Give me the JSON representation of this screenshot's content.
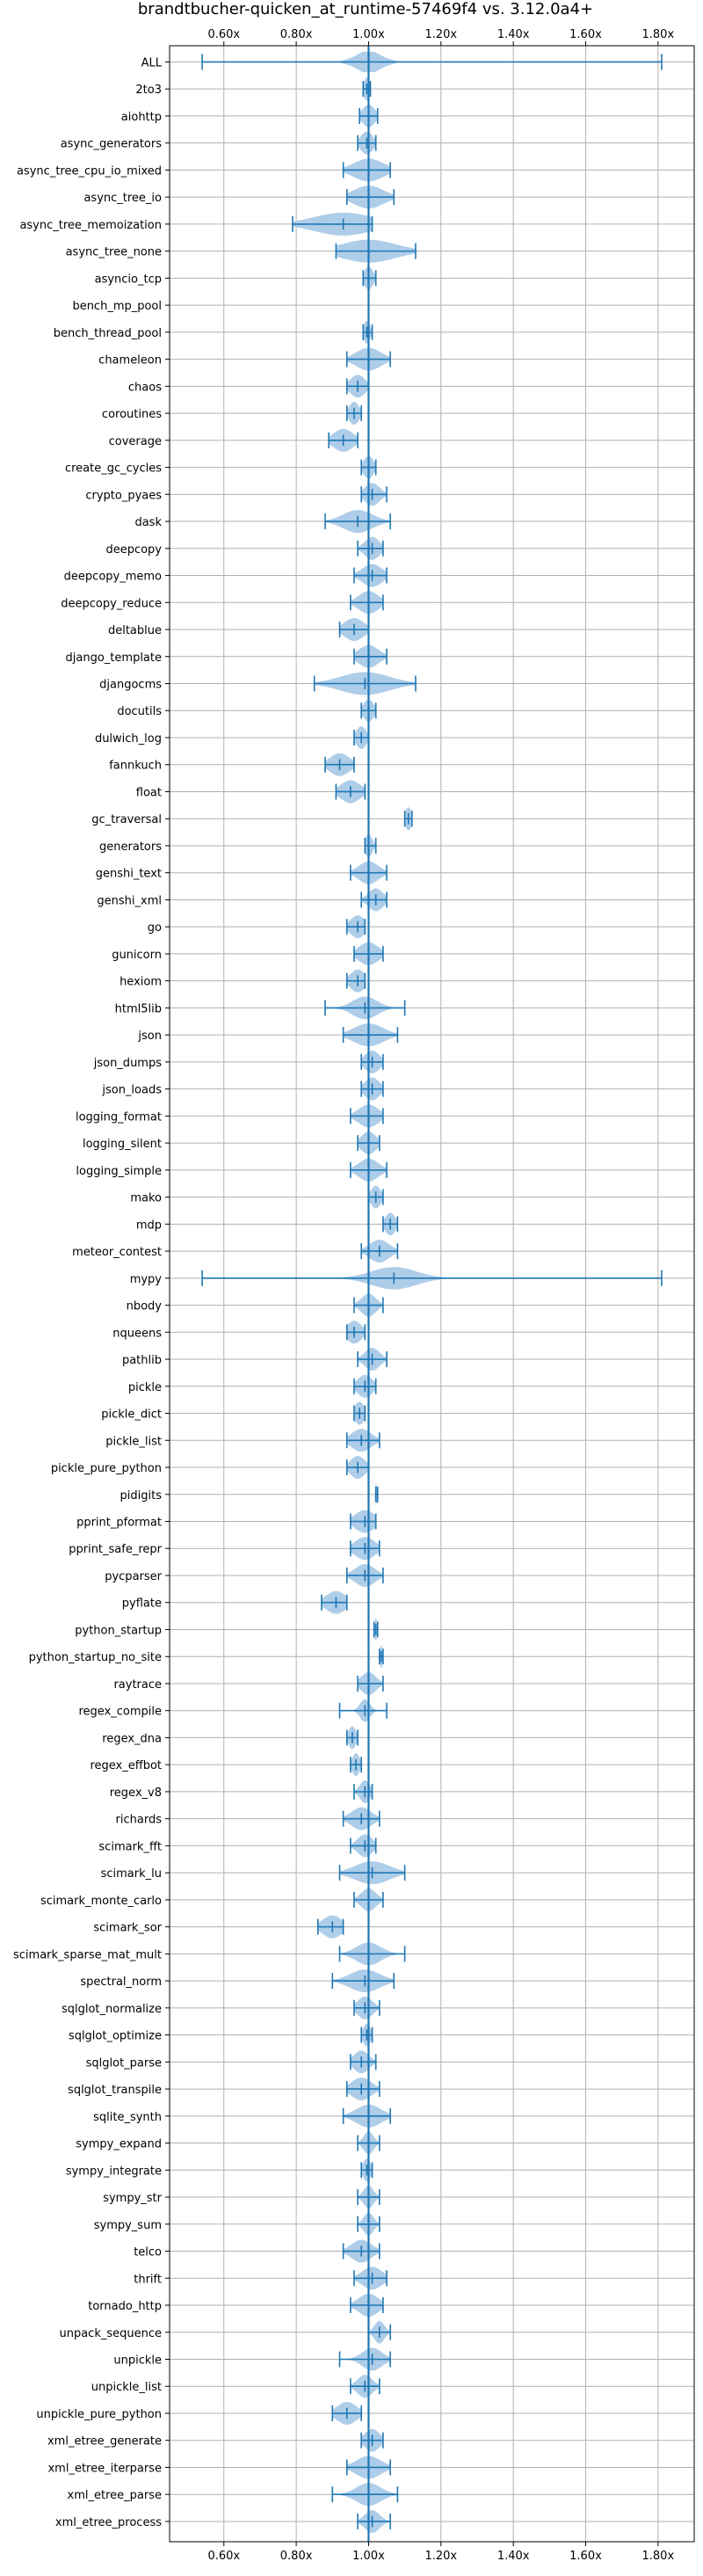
{
  "chart_data": {
    "type": "violin",
    "title": "brandtbucher-quicken_at_runtime-57469f4 vs. 3.12.0a4+",
    "orientation": "horizontal",
    "xlim": [
      0.45,
      1.9
    ],
    "xticks": [
      {
        "value": 0.6,
        "label": "0.60x"
      },
      {
        "value": 0.8,
        "label": "0.80x"
      },
      {
        "value": 1.0,
        "label": "1.00x"
      },
      {
        "value": 1.2,
        "label": "1.20x"
      },
      {
        "value": 1.4,
        "label": "1.40x"
      },
      {
        "value": 1.6,
        "label": "1.60x"
      },
      {
        "value": 1.8,
        "label": "1.80x"
      }
    ],
    "grid": true,
    "reference_line": 1.0,
    "colors": {
      "violin": "#aecde8",
      "line": "#1f77b4",
      "grid": "#b0b0b0"
    },
    "benchmarks": [
      {
        "name": "ALL",
        "min": 0.54,
        "max": 1.81,
        "median": 1.0,
        "spread": 0.05
      },
      {
        "name": "2to3",
        "min": 0.985,
        "max": 1.005,
        "median": 0.995,
        "spread": 0.012
      },
      {
        "name": "aiohttp",
        "min": 0.975,
        "max": 1.025,
        "median": 1.0,
        "spread": 0.025
      },
      {
        "name": "async_generators",
        "min": 0.97,
        "max": 1.02,
        "median": 0.995,
        "spread": 0.025
      },
      {
        "name": "async_tree_cpu_io_mixed",
        "min": 0.93,
        "max": 1.06,
        "median": 1.0,
        "spread": 0.06
      },
      {
        "name": "async_tree_io",
        "min": 0.94,
        "max": 1.07,
        "median": 1.0,
        "spread": 0.06
      },
      {
        "name": "async_tree_memoization",
        "min": 0.79,
        "max": 1.01,
        "median": 0.93,
        "spread": 0.12
      },
      {
        "name": "async_tree_none",
        "min": 0.91,
        "max": 1.13,
        "median": 1.0,
        "spread": 0.11
      },
      {
        "name": "asyncio_tcp",
        "min": 0.985,
        "max": 1.02,
        "median": 1.0,
        "spread": 0.018
      },
      {
        "name": "bench_mp_pool",
        "min": 1.0,
        "max": 1.0,
        "median": 1.0,
        "spread": 0.0
      },
      {
        "name": "bench_thread_pool",
        "min": 0.985,
        "max": 1.01,
        "median": 0.995,
        "spread": 0.013
      },
      {
        "name": "chameleon",
        "min": 0.94,
        "max": 1.06,
        "median": 1.0,
        "spread": 0.05
      },
      {
        "name": "chaos",
        "min": 0.94,
        "max": 1.0,
        "median": 0.97,
        "spread": 0.03
      },
      {
        "name": "coroutines",
        "min": 0.94,
        "max": 0.98,
        "median": 0.96,
        "spread": 0.02
      },
      {
        "name": "coverage",
        "min": 0.89,
        "max": 0.97,
        "median": 0.93,
        "spread": 0.04
      },
      {
        "name": "create_gc_cycles",
        "min": 0.98,
        "max": 1.02,
        "median": 1.0,
        "spread": 0.02
      },
      {
        "name": "crypto_pyaes",
        "min": 0.98,
        "max": 1.05,
        "median": 1.01,
        "spread": 0.03
      },
      {
        "name": "dask",
        "min": 0.88,
        "max": 1.06,
        "median": 0.97,
        "spread": 0.06
      },
      {
        "name": "deepcopy",
        "min": 0.97,
        "max": 1.04,
        "median": 1.01,
        "spread": 0.03
      },
      {
        "name": "deepcopy_memo",
        "min": 0.96,
        "max": 1.05,
        "median": 1.01,
        "spread": 0.04
      },
      {
        "name": "deepcopy_reduce",
        "min": 0.95,
        "max": 1.04,
        "median": 1.0,
        "spread": 0.04
      },
      {
        "name": "deltablue",
        "min": 0.92,
        "max": 1.0,
        "median": 0.96,
        "spread": 0.04
      },
      {
        "name": "django_template",
        "min": 0.96,
        "max": 1.05,
        "median": 1.0,
        "spread": 0.04
      },
      {
        "name": "djangocms",
        "min": 0.85,
        "max": 1.13,
        "median": 0.99,
        "spread": 0.1
      },
      {
        "name": "docutils",
        "min": 0.98,
        "max": 1.02,
        "median": 1.0,
        "spread": 0.02
      },
      {
        "name": "dulwich_log",
        "min": 0.96,
        "max": 1.0,
        "median": 0.98,
        "spread": 0.02
      },
      {
        "name": "fannkuch",
        "min": 0.88,
        "max": 0.96,
        "median": 0.92,
        "spread": 0.04
      },
      {
        "name": "float",
        "min": 0.91,
        "max": 0.99,
        "median": 0.95,
        "spread": 0.04
      },
      {
        "name": "gc_traversal",
        "min": 1.1,
        "max": 1.12,
        "median": 1.11,
        "spread": 0.015
      },
      {
        "name": "generators",
        "min": 0.99,
        "max": 1.02,
        "median": 1.0,
        "spread": 0.015
      },
      {
        "name": "genshi_text",
        "min": 0.95,
        "max": 1.05,
        "median": 1.0,
        "spread": 0.04
      },
      {
        "name": "genshi_xml",
        "min": 0.98,
        "max": 1.05,
        "median": 1.02,
        "spread": 0.03
      },
      {
        "name": "go",
        "min": 0.94,
        "max": 0.99,
        "median": 0.97,
        "spread": 0.03
      },
      {
        "name": "gunicorn",
        "min": 0.96,
        "max": 1.04,
        "median": 1.0,
        "spread": 0.04
      },
      {
        "name": "hexiom",
        "min": 0.94,
        "max": 0.99,
        "median": 0.97,
        "spread": 0.03
      },
      {
        "name": "html5lib",
        "min": 0.88,
        "max": 1.1,
        "median": 0.99,
        "spread": 0.05
      },
      {
        "name": "json",
        "min": 0.93,
        "max": 1.08,
        "median": 1.0,
        "spread": 0.06
      },
      {
        "name": "json_dumps",
        "min": 0.98,
        "max": 1.04,
        "median": 1.01,
        "spread": 0.03
      },
      {
        "name": "json_loads",
        "min": 0.98,
        "max": 1.04,
        "median": 1.01,
        "spread": 0.03
      },
      {
        "name": "logging_format",
        "min": 0.95,
        "max": 1.04,
        "median": 1.0,
        "spread": 0.04
      },
      {
        "name": "logging_silent",
        "min": 0.97,
        "max": 1.03,
        "median": 1.0,
        "spread": 0.03
      },
      {
        "name": "logging_simple",
        "min": 0.95,
        "max": 1.05,
        "median": 1.0,
        "spread": 0.04
      },
      {
        "name": "mako",
        "min": 1.0,
        "max": 1.04,
        "median": 1.02,
        "spread": 0.02
      },
      {
        "name": "mdp",
        "min": 1.04,
        "max": 1.08,
        "median": 1.06,
        "spread": 0.02
      },
      {
        "name": "meteor_contest",
        "min": 0.98,
        "max": 1.08,
        "median": 1.03,
        "spread": 0.04
      },
      {
        "name": "mypy",
        "min": 0.54,
        "max": 1.81,
        "median": 1.07,
        "spread": 0.09
      },
      {
        "name": "nbody",
        "min": 0.96,
        "max": 1.04,
        "median": 1.0,
        "spread": 0.03
      },
      {
        "name": "nqueens",
        "min": 0.94,
        "max": 0.99,
        "median": 0.96,
        "spread": 0.03
      },
      {
        "name": "pathlib",
        "min": 0.97,
        "max": 1.05,
        "median": 1.01,
        "spread": 0.03
      },
      {
        "name": "pickle",
        "min": 0.96,
        "max": 1.02,
        "median": 0.99,
        "spread": 0.03
      },
      {
        "name": "pickle_dict",
        "min": 0.96,
        "max": 0.99,
        "median": 0.975,
        "spread": 0.02
      },
      {
        "name": "pickle_list",
        "min": 0.94,
        "max": 1.03,
        "median": 0.98,
        "spread": 0.04
      },
      {
        "name": "pickle_pure_python",
        "min": 0.94,
        "max": 1.0,
        "median": 0.97,
        "spread": 0.03
      },
      {
        "name": "pidigits",
        "min": 1.02,
        "max": 1.025,
        "median": 1.02,
        "spread": 0.005
      },
      {
        "name": "pprint_pformat",
        "min": 0.95,
        "max": 1.02,
        "median": 0.99,
        "spread": 0.04
      },
      {
        "name": "pprint_safe_repr",
        "min": 0.95,
        "max": 1.03,
        "median": 0.99,
        "spread": 0.04
      },
      {
        "name": "pycparser",
        "min": 0.94,
        "max": 1.04,
        "median": 0.99,
        "spread": 0.04
      },
      {
        "name": "pyflate",
        "min": 0.87,
        "max": 0.94,
        "median": 0.91,
        "spread": 0.04
      },
      {
        "name": "python_startup",
        "min": 1.015,
        "max": 1.025,
        "median": 1.02,
        "spread": 0.005
      },
      {
        "name": "python_startup_no_site",
        "min": 1.03,
        "max": 1.04,
        "median": 1.035,
        "spread": 0.005
      },
      {
        "name": "raytrace",
        "min": 0.97,
        "max": 1.04,
        "median": 1.0,
        "spread": 0.03
      },
      {
        "name": "regex_compile",
        "min": 0.92,
        "max": 1.05,
        "median": 0.99,
        "spread": 0.02
      },
      {
        "name": "regex_dna",
        "min": 0.94,
        "max": 0.97,
        "median": 0.955,
        "spread": 0.015
      },
      {
        "name": "regex_effbot",
        "min": 0.95,
        "max": 0.98,
        "median": 0.965,
        "spread": 0.015
      },
      {
        "name": "regex_v8",
        "min": 0.96,
        "max": 1.01,
        "median": 0.99,
        "spread": 0.02
      },
      {
        "name": "richards",
        "min": 0.93,
        "max": 1.03,
        "median": 0.98,
        "spread": 0.04
      },
      {
        "name": "scimark_fft",
        "min": 0.95,
        "max": 1.02,
        "median": 0.99,
        "spread": 0.03
      },
      {
        "name": "scimark_lu",
        "min": 0.92,
        "max": 1.1,
        "median": 1.01,
        "spread": 0.07
      },
      {
        "name": "scimark_monte_carlo",
        "min": 0.96,
        "max": 1.04,
        "median": 1.0,
        "spread": 0.03
      },
      {
        "name": "scimark_sor",
        "min": 0.86,
        "max": 0.93,
        "median": 0.9,
        "spread": 0.04
      },
      {
        "name": "scimark_sparse_mat_mult",
        "min": 0.92,
        "max": 1.1,
        "median": 1.0,
        "spread": 0.05
      },
      {
        "name": "spectral_norm",
        "min": 0.9,
        "max": 1.07,
        "median": 0.99,
        "spread": 0.06
      },
      {
        "name": "sqlglot_normalize",
        "min": 0.96,
        "max": 1.03,
        "median": 0.99,
        "spread": 0.03
      },
      {
        "name": "sqlglot_optimize",
        "min": 0.98,
        "max": 1.01,
        "median": 0.995,
        "spread": 0.015
      },
      {
        "name": "sqlglot_parse",
        "min": 0.95,
        "max": 1.02,
        "median": 0.98,
        "spread": 0.03
      },
      {
        "name": "sqlglot_transpile",
        "min": 0.94,
        "max": 1.03,
        "median": 0.98,
        "spread": 0.04
      },
      {
        "name": "sqlite_synth",
        "min": 0.93,
        "max": 1.06,
        "median": 1.0,
        "spread": 0.05
      },
      {
        "name": "sympy_expand",
        "min": 0.97,
        "max": 1.03,
        "median": 1.0,
        "spread": 0.02
      },
      {
        "name": "sympy_integrate",
        "min": 0.98,
        "max": 1.01,
        "median": 0.995,
        "spread": 0.015
      },
      {
        "name": "sympy_str",
        "min": 0.97,
        "max": 1.03,
        "median": 1.0,
        "spread": 0.02
      },
      {
        "name": "sympy_sum",
        "min": 0.97,
        "max": 1.03,
        "median": 1.0,
        "spread": 0.02
      },
      {
        "name": "telco",
        "min": 0.93,
        "max": 1.03,
        "median": 0.98,
        "spread": 0.04
      },
      {
        "name": "thrift",
        "min": 0.96,
        "max": 1.05,
        "median": 1.01,
        "spread": 0.04
      },
      {
        "name": "tornado_http",
        "min": 0.95,
        "max": 1.04,
        "median": 1.0,
        "spread": 0.04
      },
      {
        "name": "unpack_sequence",
        "min": 1.0,
        "max": 1.06,
        "median": 1.03,
        "spread": 0.02
      },
      {
        "name": "unpickle",
        "min": 0.92,
        "max": 1.06,
        "median": 1.01,
        "spread": 0.04
      },
      {
        "name": "unpickle_list",
        "min": 0.95,
        "max": 1.03,
        "median": 0.99,
        "spread": 0.03
      },
      {
        "name": "unpickle_pure_python",
        "min": 0.9,
        "max": 0.98,
        "median": 0.94,
        "spread": 0.04
      },
      {
        "name": "xml_etree_generate",
        "min": 0.98,
        "max": 1.04,
        "median": 1.01,
        "spread": 0.03
      },
      {
        "name": "xml_etree_iterparse",
        "min": 0.94,
        "max": 1.06,
        "median": 1.0,
        "spread": 0.05
      },
      {
        "name": "xml_etree_parse",
        "min": 0.9,
        "max": 1.08,
        "median": 1.0,
        "spread": 0.05
      },
      {
        "name": "xml_etree_process",
        "min": 0.97,
        "max": 1.06,
        "median": 1.01,
        "spread": 0.03
      }
    ]
  }
}
